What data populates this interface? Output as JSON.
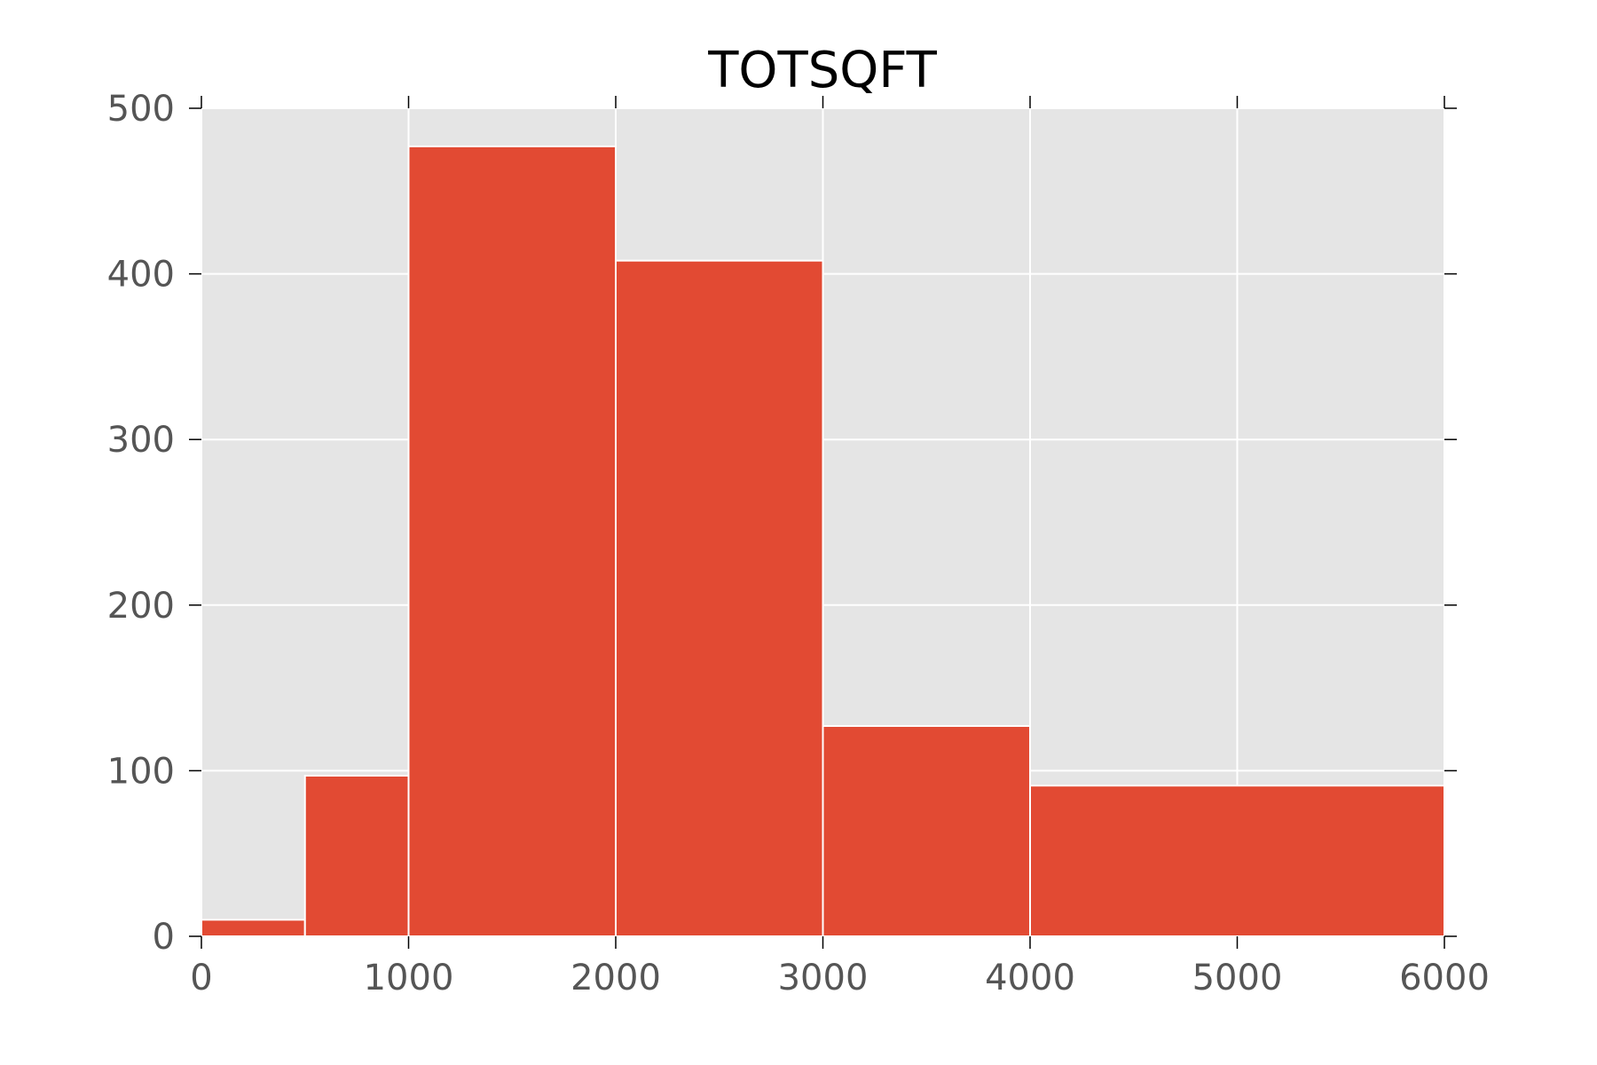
{
  "chart_data": {
    "type": "bar",
    "title": "TOTSQFT",
    "xlabel": "",
    "ylabel": "",
    "bins": [
      {
        "x0": 0,
        "x1": 500,
        "count": 10
      },
      {
        "x0": 500,
        "x1": 1000,
        "count": 97
      },
      {
        "x0": 1000,
        "x1": 2000,
        "count": 477
      },
      {
        "x0": 2000,
        "x1": 3000,
        "count": 408
      },
      {
        "x0": 3000,
        "x1": 4000,
        "count": 127
      },
      {
        "x0": 4000,
        "x1": 6000,
        "count": 91
      }
    ],
    "xlim": [
      0,
      6000
    ],
    "ylim": [
      0,
      500
    ],
    "xticks": [
      0,
      1000,
      2000,
      3000,
      4000,
      5000,
      6000
    ],
    "yticks": [
      0,
      100,
      200,
      300,
      400,
      500
    ],
    "grid": true,
    "colors": {
      "bar": "#E24A33",
      "background": "#E5E5E5",
      "grid": "#FFFFFF",
      "tick_label": "#555555"
    }
  }
}
